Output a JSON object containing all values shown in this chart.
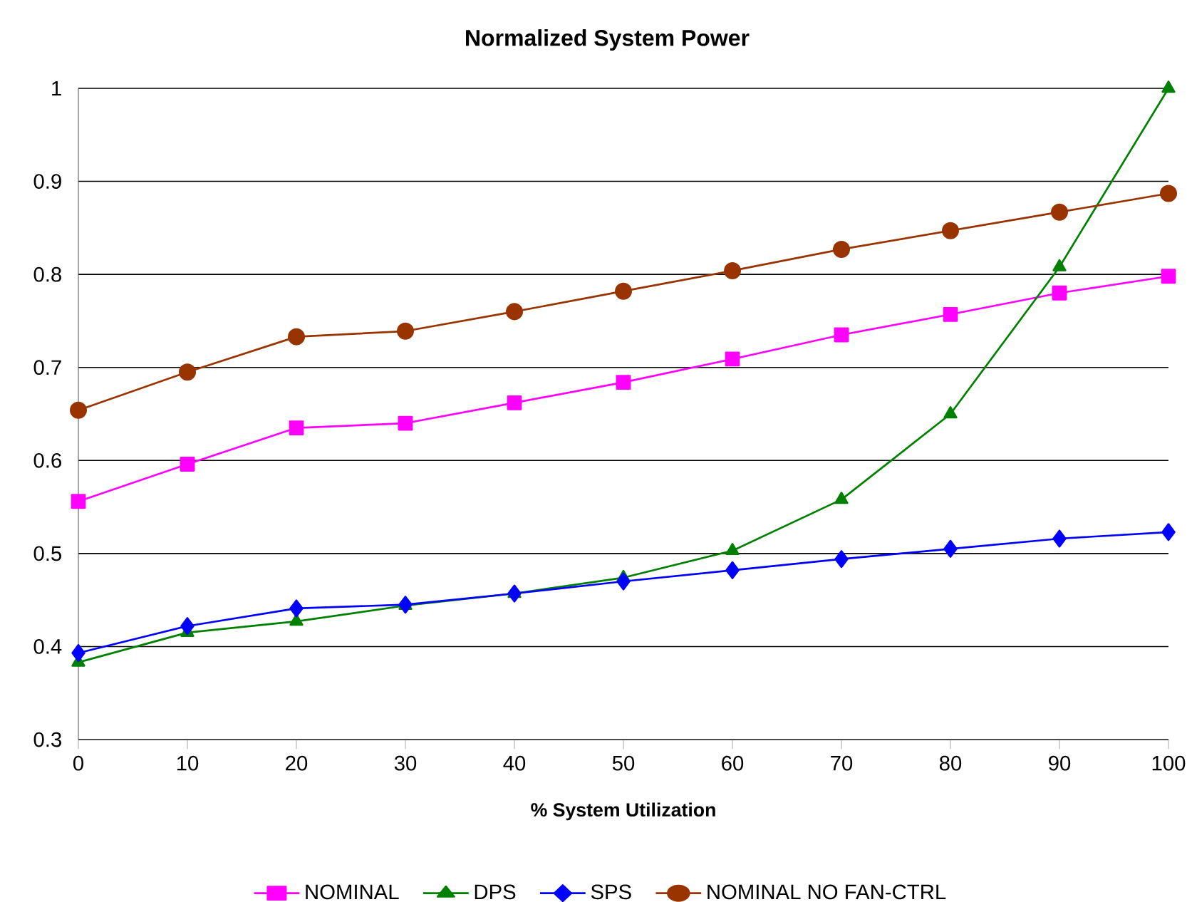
{
  "chart_data": {
    "type": "line",
    "title": "Normalized System Power",
    "xlabel": "% System Utilization",
    "x": [
      0,
      10,
      20,
      30,
      40,
      50,
      60,
      70,
      80,
      90,
      100
    ],
    "xlim": [
      0,
      100
    ],
    "xticks": [
      0,
      10,
      20,
      30,
      40,
      50,
      60,
      70,
      80,
      90,
      100
    ],
    "ylim": [
      0.3,
      1
    ],
    "yticks": [
      0.3,
      0.4,
      0.5,
      0.6,
      0.7,
      0.8,
      0.9,
      1
    ],
    "grid": "y",
    "legend": "bottom",
    "series": [
      {
        "name": "NOMINAL",
        "color": "#ff00ff",
        "marker": "square",
        "values": [
          0.556,
          0.596,
          0.635,
          0.64,
          0.662,
          0.684,
          0.709,
          0.735,
          0.757,
          0.78,
          0.798
        ]
      },
      {
        "name": "DPS",
        "color": "#008000",
        "marker": "triangle",
        "values": [
          0.383,
          0.415,
          0.427,
          0.444,
          0.457,
          0.474,
          0.503,
          0.558,
          0.65,
          0.808,
          1.0
        ]
      },
      {
        "name": "SPS",
        "color": "#0000ff",
        "marker": "diamond",
        "values": [
          0.393,
          0.422,
          0.441,
          0.445,
          0.457,
          0.47,
          0.482,
          0.494,
          0.505,
          0.516,
          0.523
        ]
      },
      {
        "name": "NOMINAL NO FAN-CTRL",
        "color": "#993300",
        "marker": "circle",
        "values": [
          0.654,
          0.695,
          0.733,
          0.739,
          0.76,
          0.782,
          0.804,
          0.827,
          0.847,
          0.867,
          0.887
        ]
      }
    ]
  }
}
